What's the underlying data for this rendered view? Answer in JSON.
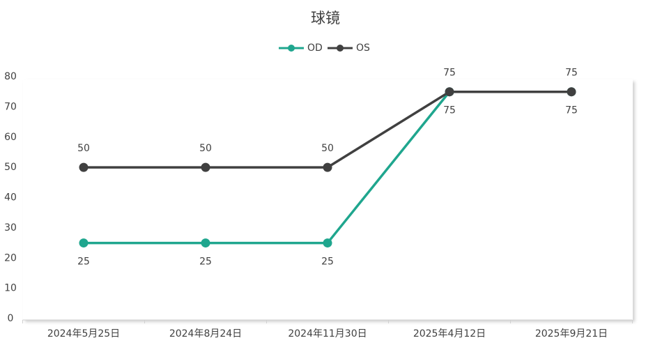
{
  "chart_data": {
    "type": "line",
    "title": "球镜",
    "categories": [
      "2024年5月25日",
      "2024年8月24日",
      "2024年11月30日",
      "2025年4月12日",
      "2025年9月21日"
    ],
    "series": [
      {
        "name": "OD",
        "color": "#1fa68e",
        "values": [
          25,
          25,
          25,
          75,
          75
        ]
      },
      {
        "name": "OS",
        "color": "#404040",
        "values": [
          50,
          50,
          50,
          75,
          75
        ]
      }
    ],
    "ylim": [
      0,
      80
    ],
    "yticks": [
      0,
      10,
      20,
      30,
      40,
      50,
      60,
      70,
      80
    ],
    "legend": "top",
    "data_labels": true
  }
}
